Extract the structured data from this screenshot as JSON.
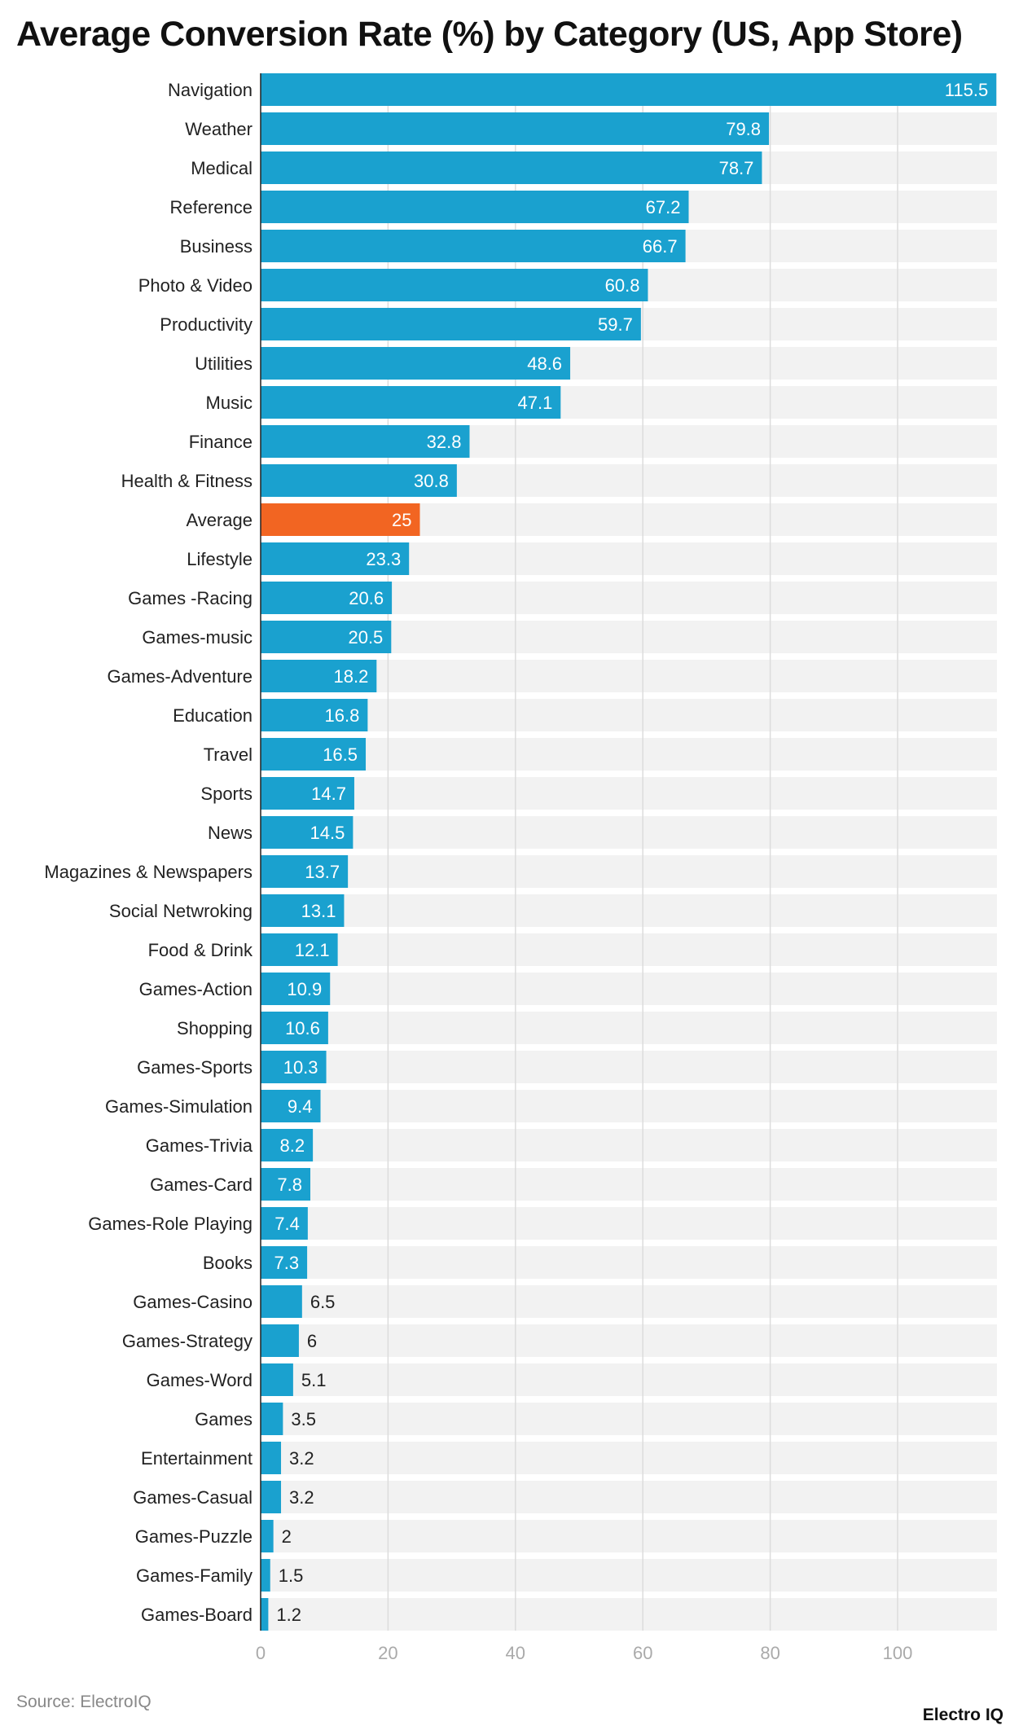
{
  "chart_data": {
    "type": "bar",
    "orientation": "horizontal",
    "title": "Average Conversion Rate (%) by Category (US, App Store)",
    "categories": [
      "Navigation",
      "Weather",
      "Medical",
      "Reference",
      "Business",
      "Photo & Video",
      "Productivity",
      "Utilities",
      "Music",
      "Finance",
      "Health & Fitness",
      "Average",
      "Lifestyle",
      "Games -Racing",
      "Games-music",
      "Games-Adventure",
      "Education",
      "Travel",
      "Sports",
      "News",
      "Magazines & Newspapers",
      "Social Netwroking",
      "Food & Drink",
      "Games-Action",
      "Shopping",
      "Games-Sports",
      "Games-Simulation",
      "Games-Trivia",
      "Games-Card",
      "Games-Role Playing",
      "Books",
      "Games-Casino",
      "Games-Strategy",
      "Games-Word",
      "Games",
      "Entertainment",
      "Games-Casual",
      "Games-Puzzle",
      "Games-Family",
      "Games-Board"
    ],
    "values": [
      115.5,
      79.8,
      78.7,
      67.2,
      66.7,
      60.8,
      59.7,
      48.6,
      47.1,
      32.8,
      30.8,
      25,
      23.3,
      20.6,
      20.5,
      18.2,
      16.8,
      16.5,
      14.7,
      14.5,
      13.7,
      13.1,
      12.1,
      10.9,
      10.6,
      10.3,
      9.4,
      8.2,
      7.8,
      7.4,
      7.3,
      6.5,
      6,
      5.1,
      3.5,
      3.2,
      3.2,
      2,
      1.5,
      1.2
    ],
    "value_labels": [
      "115.5",
      "79.8",
      "78.7",
      "67.2",
      "66.7",
      "60.8",
      "59.7",
      "48.6",
      "47.1",
      "32.8",
      "30.8",
      "25",
      "23.3",
      "20.6",
      "20.5",
      "18.2",
      "16.8",
      "16.5",
      "14.7",
      "14.5",
      "13.7",
      "13.1",
      "12.1",
      "10.9",
      "10.6",
      "10.3",
      "9.4",
      "8.2",
      "7.8",
      "7.4",
      "7.3",
      "6.5",
      "6",
      "5.1",
      "3.5",
      "3.2",
      "3.2",
      "2",
      "1.5",
      "1.2"
    ],
    "xlim": [
      0,
      115.5
    ],
    "xticks": [
      "0",
      "20",
      "40",
      "60",
      "80",
      "100"
    ],
    "xlabel": "",
    "ylabel": "",
    "grid": true,
    "colors": {
      "bar": "#1aa1cf",
      "highlight": "#f26522",
      "stripe": "#f2f2f2",
      "grid": "#dcdcdc"
    },
    "highlight_category": "Average"
  },
  "footer": {
    "source": "Source: ElectroIQ",
    "brand": "Electro IQ"
  }
}
